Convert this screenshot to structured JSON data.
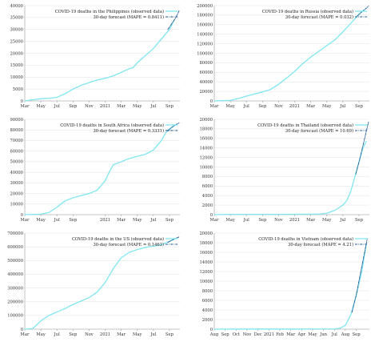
{
  "figure": {
    "legend_placement": "top-right",
    "colors": {
      "observed": "#7fe6f2",
      "forecast": "#1f5a96"
    }
  },
  "chart_data": [
    {
      "id": "philippines",
      "type": "line",
      "legend": [
        "COVID-19 deaths in the Philippines (observed data)",
        "30-day forecast (MAPE = 0.8411)"
      ],
      "ylim": [
        0,
        40000
      ],
      "yticks": [
        0,
        5000,
        10000,
        15000,
        20000,
        25000,
        30000,
        35000,
        40000
      ],
      "x_ticks": [
        {
          "label": "Mar",
          "m": 0
        },
        {
          "label": "May",
          "m": 2
        },
        {
          "label": "Jul",
          "m": 4
        },
        {
          "label": "Sep",
          "m": 6
        },
        {
          "label": "Nov",
          "m": 8
        },
        {
          "label": "2021",
          "m": 10
        },
        {
          "label": "Mar",
          "m": 12
        },
        {
          "label": "May",
          "m": 14
        },
        {
          "label": "Jul",
          "m": 16
        },
        {
          "label": "Sep",
          "m": 18
        }
      ],
      "xlim": [
        0,
        19.3
      ],
      "series": [
        {
          "role": "observed",
          "points": [
            [
              0,
              0
            ],
            [
              1,
              500
            ],
            [
              2,
              900
            ],
            [
              3,
              1100
            ],
            [
              4,
              1500
            ],
            [
              5,
              3000
            ],
            [
              6,
              5000
            ],
            [
              7,
              6500
            ],
            [
              8,
              7700
            ],
            [
              9,
              8800
            ],
            [
              10,
              9500
            ],
            [
              11,
              10500
            ],
            [
              12,
              12000
            ],
            [
              13,
              13500
            ],
            [
              13.5,
              14000
            ],
            [
              14,
              16000
            ],
            [
              15,
              19000
            ],
            [
              16,
              22000
            ],
            [
              16.5,
              24000
            ],
            [
              17,
              26000
            ],
            [
              17.5,
              28000
            ],
            [
              18,
              30000
            ],
            [
              18.3,
              32000
            ],
            [
              18.6,
              34000
            ]
          ]
        },
        {
          "role": "forecast",
          "points": [
            [
              17.8,
              30000
            ],
            [
              18.3,
              32500
            ],
            [
              18.8,
              35000
            ],
            [
              19.2,
              37800
            ]
          ]
        }
      ]
    },
    {
      "id": "russia",
      "type": "line",
      "legend": [
        "COVID-19 deaths in Russia (observed data)",
        "30-day forecast (MAPE = 0.032)"
      ],
      "ylim": [
        0,
        200000
      ],
      "yticks": [
        0,
        20000,
        40000,
        60000,
        80000,
        100000,
        120000,
        140000,
        160000,
        180000,
        200000
      ],
      "x_ticks": [
        {
          "label": "Mar",
          "m": 0
        },
        {
          "label": "May",
          "m": 2
        },
        {
          "label": "Jul",
          "m": 4
        },
        {
          "label": "Sep",
          "m": 6
        },
        {
          "label": "Nov",
          "m": 8
        },
        {
          "label": "2021",
          "m": 10
        },
        {
          "label": "Mar",
          "m": 12
        },
        {
          "label": "May",
          "m": 14
        },
        {
          "label": "Jul",
          "m": 16
        },
        {
          "label": "Sep",
          "m": 18
        }
      ],
      "xlim": [
        0,
        19.3
      ],
      "series": [
        {
          "role": "observed",
          "points": [
            [
              0,
              0
            ],
            [
              2,
              1200
            ],
            [
              3,
              5000
            ],
            [
              4,
              10000
            ],
            [
              6,
              19000
            ],
            [
              7,
              24000
            ],
            [
              8,
              35000
            ],
            [
              9,
              48000
            ],
            [
              10,
              62000
            ],
            [
              11,
              78000
            ],
            [
              12,
              92000
            ],
            [
              13,
              104000
            ],
            [
              14,
              116000
            ],
            [
              15,
              128000
            ],
            [
              16,
              145000
            ],
            [
              17,
              163000
            ],
            [
              18,
              182000
            ],
            [
              18.6,
              191000
            ]
          ]
        },
        {
          "role": "forecast",
          "points": [
            [
              17.8,
              178000
            ],
            [
              18.3,
              186000
            ],
            [
              18.8,
              193000
            ],
            [
              19.2,
              199000
            ]
          ]
        }
      ]
    },
    {
      "id": "south-africa",
      "type": "line",
      "legend": [
        "COVID-19 deaths in South Africa (observed data)",
        "30-day forecast (MAPE = 0.3331)"
      ],
      "ylim": [
        0,
        90000
      ],
      "yticks": [
        0,
        10000,
        20000,
        30000,
        40000,
        50000,
        60000,
        70000,
        80000,
        90000
      ],
      "x_ticks": [
        {
          "label": "Mar",
          "m": 0
        },
        {
          "label": "May",
          "m": 2
        },
        {
          "label": "Jul",
          "m": 4
        },
        {
          "label": "Sep",
          "m": 6
        },
        {
          "label": "2021",
          "m": 10
        },
        {
          "label": "Mar",
          "m": 12
        },
        {
          "label": "May",
          "m": 14
        },
        {
          "label": "Jul",
          "m": 16
        },
        {
          "label": "Sep",
          "m": 18
        }
      ],
      "xlim": [
        0,
        19.3
      ],
      "series": [
        {
          "role": "observed",
          "points": [
            [
              0,
              0
            ],
            [
              2,
              500
            ],
            [
              3,
              2000
            ],
            [
              4,
              7000
            ],
            [
              5,
              13000
            ],
            [
              6,
              16000
            ],
            [
              7,
              18000
            ],
            [
              8,
              20000
            ],
            [
              9,
              23000
            ],
            [
              10,
              32000
            ],
            [
              10.5,
              40000
            ],
            [
              11,
              47000
            ],
            [
              12,
              50000
            ],
            [
              13,
              53000
            ],
            [
              14,
              55000
            ],
            [
              15,
              57000
            ],
            [
              16,
              61000
            ],
            [
              17,
              70000
            ],
            [
              17.5,
              77000
            ],
            [
              18,
              81000
            ],
            [
              18.6,
              84000
            ]
          ]
        },
        {
          "role": "forecast",
          "points": [
            [
              17.8,
              79000
            ],
            [
              18.3,
              82500
            ],
            [
              18.8,
              85000
            ],
            [
              19.2,
              86600
            ]
          ]
        }
      ]
    },
    {
      "id": "thailand",
      "type": "line",
      "legend": [
        "COVID-19 deaths in Thailand (observed data)",
        "30-day forecast (MAPE = 10.69)"
      ],
      "ylim": [
        0,
        20000
      ],
      "yticks": [
        0,
        2000,
        4000,
        6000,
        8000,
        10000,
        12000,
        14000,
        16000,
        18000,
        20000
      ],
      "x_ticks": [
        {
          "label": "Mar",
          "m": 0
        },
        {
          "label": "May",
          "m": 2
        },
        {
          "label": "Jul",
          "m": 4
        },
        {
          "label": "Sep",
          "m": 6
        },
        {
          "label": "Nov",
          "m": 8
        },
        {
          "label": "2021",
          "m": 10
        },
        {
          "label": "Mar",
          "m": 12
        },
        {
          "label": "May",
          "m": 14
        },
        {
          "label": "Jul",
          "m": 16
        },
        {
          "label": "Sep",
          "m": 18
        }
      ],
      "xlim": [
        0,
        19.3
      ],
      "series": [
        {
          "role": "observed",
          "points": [
            [
              0,
              0
            ],
            [
              2,
              60
            ],
            [
              4,
              60
            ],
            [
              6,
              60
            ],
            [
              8,
              60
            ],
            [
              10,
              80
            ],
            [
              12,
              100
            ],
            [
              13,
              100
            ],
            [
              14,
              300
            ],
            [
              15,
              900
            ],
            [
              16,
              2000
            ],
            [
              16.5,
              3000
            ],
            [
              17,
              5000
            ],
            [
              17.5,
              8000
            ],
            [
              18,
              11000
            ],
            [
              18.5,
              14000
            ],
            [
              18.9,
              15400
            ]
          ]
        },
        {
          "role": "forecast",
          "points": [
            [
              17.6,
              8500
            ],
            [
              18,
              11000
            ],
            [
              18.5,
              14500
            ],
            [
              19.2,
              19500
            ]
          ]
        }
      ]
    },
    {
      "id": "us",
      "type": "line",
      "legend": [
        "COVID-19 deaths in the US (observed data)",
        "30-day forecast (MAPE = 0.1463)"
      ],
      "ylim": [
        0,
        700000
      ],
      "yticks": [
        0,
        100000,
        200000,
        300000,
        400000,
        500000,
        600000,
        700000
      ],
      "x_ticks": [
        {
          "label": "Mar",
          "m": 0
        },
        {
          "label": "May",
          "m": 2
        },
        {
          "label": "Jul",
          "m": 4
        },
        {
          "label": "Sep",
          "m": 6
        },
        {
          "label": "Nov",
          "m": 8
        },
        {
          "label": "2021",
          "m": 10
        },
        {
          "label": "Mar",
          "m": 12
        },
        {
          "label": "May",
          "m": 14
        },
        {
          "label": "Jul",
          "m": 16
        },
        {
          "label": "Sep",
          "m": 18
        }
      ],
      "xlim": [
        0,
        19.3
      ],
      "series": [
        {
          "role": "observed",
          "points": [
            [
              0,
              0
            ],
            [
              1,
              5000
            ],
            [
              2,
              60000
            ],
            [
              3,
              100000
            ],
            [
              4,
              125000
            ],
            [
              5,
              150000
            ],
            [
              6,
              180000
            ],
            [
              7,
              205000
            ],
            [
              8,
              230000
            ],
            [
              9,
              270000
            ],
            [
              10,
              340000
            ],
            [
              11,
              440000
            ],
            [
              12,
              520000
            ],
            [
              13,
              560000
            ],
            [
              14,
              580000
            ],
            [
              15,
              595000
            ],
            [
              16,
              605000
            ],
            [
              17,
              615000
            ],
            [
              18,
              640000
            ],
            [
              18.6,
              655000
            ]
          ]
        },
        {
          "role": "forecast",
          "points": [
            [
              17.8,
              632000
            ],
            [
              18.3,
              648000
            ],
            [
              18.8,
              662000
            ],
            [
              19.2,
              672000
            ]
          ]
        }
      ]
    },
    {
      "id": "vietnam",
      "type": "line",
      "legend": [
        "COVID-19 deaths in Vietnam (observed data)",
        "30-day forecast (MAPE = 4.21)"
      ],
      "ylim": [
        0,
        20000
      ],
      "yticks": [
        0,
        2000,
        4000,
        6000,
        8000,
        10000,
        12000,
        14000,
        16000,
        18000,
        20000
      ],
      "x_ticks": [
        {
          "label": "Aug",
          "m": 0
        },
        {
          "label": "Sep",
          "m": 1
        },
        {
          "label": "Oct",
          "m": 2
        },
        {
          "label": "Nov",
          "m": 3
        },
        {
          "label": "Dec",
          "m": 4
        },
        {
          "label": "2021",
          "m": 5
        },
        {
          "label": "Feb",
          "m": 6
        },
        {
          "label": "Mar",
          "m": 7
        },
        {
          "label": "Apr",
          "m": 8
        },
        {
          "label": "May",
          "m": 9
        },
        {
          "label": "Jun",
          "m": 10
        },
        {
          "label": "Jul",
          "m": 11
        },
        {
          "label": "Aug",
          "m": 12
        },
        {
          "label": "Sep",
          "m": 13
        }
      ],
      "xlim": [
        0,
        14.2
      ],
      "series": [
        {
          "role": "observed",
          "points": [
            [
              0,
              0
            ],
            [
              2,
              35
            ],
            [
              4,
              35
            ],
            [
              6,
              35
            ],
            [
              8,
              35
            ],
            [
              10,
              40
            ],
            [
              11,
              60
            ],
            [
              11.5,
              200
            ],
            [
              12,
              800
            ],
            [
              12.5,
              3000
            ],
            [
              13,
              7000
            ],
            [
              13.5,
              12000
            ],
            [
              13.9,
              17500
            ]
          ]
        },
        {
          "role": "forecast",
          "points": [
            [
              12.6,
              3500
            ],
            [
              13,
              7200
            ],
            [
              13.5,
              13000
            ],
            [
              14,
              18800
            ]
          ]
        }
      ]
    }
  ]
}
